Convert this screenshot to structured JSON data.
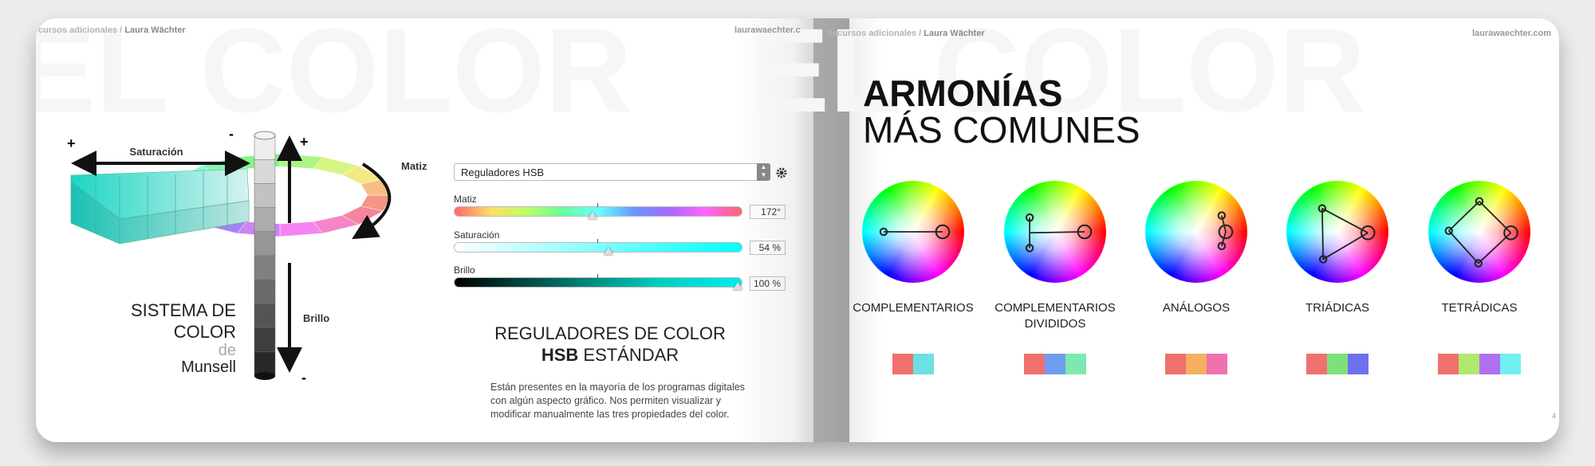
{
  "left_page": {
    "header": {
      "section": "cursos adicionales",
      "separator": "/",
      "author": "Laura Wächter",
      "site": "laurawaechter.c"
    },
    "watermark": "EL COLOR",
    "munsell": {
      "labels": {
        "saturation": "Saturación",
        "hue": "Matiz",
        "brightness": "Brillo",
        "saturation_plus": "+",
        "saturation_minus": "-",
        "brightness_plus": "+",
        "brightness_minus": "-"
      },
      "caption": [
        "SISTEMA DE",
        "COLOR",
        "de",
        "Munsell"
      ]
    },
    "hsb": {
      "dropdown": "Reguladores HSB",
      "sliders": [
        {
          "label": "Matiz",
          "value": "172°"
        },
        {
          "label": "Saturación",
          "value": "54 %"
        },
        {
          "label": "Brillo",
          "value": "100 %"
        }
      ],
      "title": "REGULADORES DE COLOR",
      "title_bold": "HSB",
      "title_rest": "ESTÁNDAR",
      "description": [
        "Están presentes en la mayoría de los programas digitales",
        "con algún aspecto gráfico. Nos permiten visualizar y",
        "modificar manualmente las tres propiedades del color."
      ]
    }
  },
  "right_page": {
    "header": {
      "section": "Recursos adicionales",
      "separator": "/",
      "author": "Laura Wächter",
      "site": "laurawaechter.com"
    },
    "watermark": "EL COLOR",
    "title_bold": "ARMONÍAS",
    "title_light": "MÁS COMUNES",
    "harmonies": [
      {
        "label": [
          "COMPLEMENTARIOS"
        ]
      },
      {
        "label": [
          "COMPLEMENTARIOS",
          "DIVIDIDOS"
        ]
      },
      {
        "label": [
          "ANÁLOGOS"
        ]
      },
      {
        "label": [
          "TRIÁDICAS"
        ]
      },
      {
        "label": [
          "TETRÁDICAS"
        ]
      }
    ],
    "page_number": "4"
  }
}
